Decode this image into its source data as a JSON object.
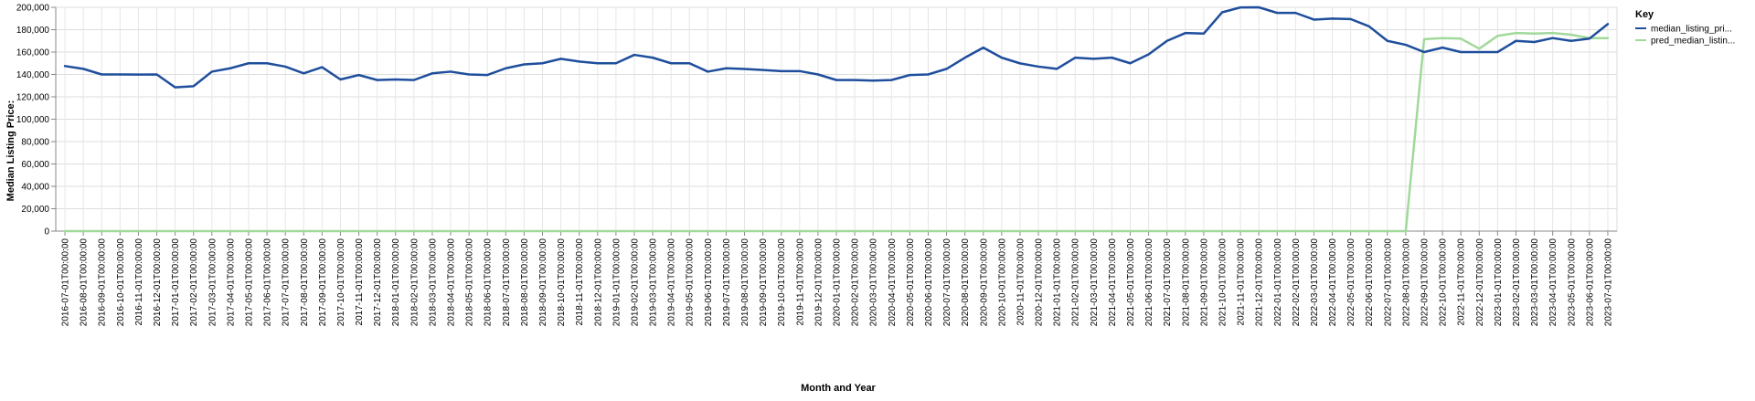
{
  "chart_data": {
    "type": "line",
    "xlabel": "Month and Year",
    "ylabel": "Median Listing Price:",
    "ylim": [
      0,
      200000
    ],
    "y_ticks": [
      0,
      20000,
      40000,
      60000,
      80000,
      100000,
      120000,
      140000,
      160000,
      180000,
      200000
    ],
    "y_tick_labels": [
      "0",
      "20,000",
      "40,000",
      "60,000",
      "80,000",
      "100,000",
      "120,000",
      "140,000",
      "160,000",
      "180,000",
      "200,000"
    ],
    "grid": true,
    "legend": {
      "title": "Key",
      "position": "right"
    },
    "x": [
      "2016-07-01T00:00:00",
      "2016-08-01T00:00:00",
      "2016-09-01T00:00:00",
      "2016-10-01T00:00:00",
      "2016-11-01T00:00:00",
      "2016-12-01T00:00:00",
      "2017-01-01T00:00:00",
      "2017-02-01T00:00:00",
      "2017-03-01T00:00:00",
      "2017-04-01T00:00:00",
      "2017-05-01T00:00:00",
      "2017-06-01T00:00:00",
      "2017-07-01T00:00:00",
      "2017-08-01T00:00:00",
      "2017-09-01T00:00:00",
      "2017-10-01T00:00:00",
      "2017-11-01T00:00:00",
      "2017-12-01T00:00:00",
      "2018-01-01T00:00:00",
      "2018-02-01T00:00:00",
      "2018-03-01T00:00:00",
      "2018-04-01T00:00:00",
      "2018-05-01T00:00:00",
      "2018-06-01T00:00:00",
      "2018-07-01T00:00:00",
      "2018-08-01T00:00:00",
      "2018-09-01T00:00:00",
      "2018-10-01T00:00:00",
      "2018-11-01T00:00:00",
      "2018-12-01T00:00:00",
      "2019-01-01T00:00:00",
      "2019-02-01T00:00:00",
      "2019-03-01T00:00:00",
      "2019-04-01T00:00:00",
      "2019-05-01T00:00:00",
      "2019-06-01T00:00:00",
      "2019-07-01T00:00:00",
      "2019-08-01T00:00:00",
      "2019-09-01T00:00:00",
      "2019-10-01T00:00:00",
      "2019-11-01T00:00:00",
      "2019-12-01T00:00:00",
      "2020-01-01T00:00:00",
      "2020-02-01T00:00:00",
      "2020-03-01T00:00:00",
      "2020-04-01T00:00:00",
      "2020-05-01T00:00:00",
      "2020-06-01T00:00:00",
      "2020-07-01T00:00:00",
      "2020-08-01T00:00:00",
      "2020-09-01T00:00:00",
      "2020-10-01T00:00:00",
      "2020-11-01T00:00:00",
      "2020-12-01T00:00:00",
      "2021-01-01T00:00:00",
      "2021-02-01T00:00:00",
      "2021-03-01T00:00:00",
      "2021-04-01T00:00:00",
      "2021-05-01T00:00:00",
      "2021-06-01T00:00:00",
      "2021-07-01T00:00:00",
      "2021-08-01T00:00:00",
      "2021-09-01T00:00:00",
      "2021-10-01T00:00:00",
      "2021-11-01T00:00:00",
      "2021-12-01T00:00:00",
      "2022-01-01T00:00:00",
      "2022-02-01T00:00:00",
      "2022-03-01T00:00:00",
      "2022-04-01T00:00:00",
      "2022-05-01T00:00:00",
      "2022-06-01T00:00:00",
      "2022-07-01T00:00:00",
      "2022-08-01T00:00:00",
      "2022-09-01T00:00:00",
      "2022-10-01T00:00:00",
      "2022-11-01T00:00:00",
      "2022-12-01T00:00:00",
      "2023-01-01T00:00:00",
      "2023-02-01T00:00:00",
      "2023-03-01T00:00:00",
      "2023-04-01T00:00:00",
      "2023-05-01T00:00:00",
      "2023-06-01T00:00:00",
      "2023-07-01T00:00:00"
    ],
    "series": [
      {
        "name": "median_listing_pri...",
        "color": "#1f4e9c",
        "values": [
          147500,
          145000,
          140000,
          140000,
          139900,
          140000,
          128500,
          129500,
          142500,
          145500,
          150000,
          150000,
          147000,
          141000,
          146500,
          135500,
          139500,
          135000,
          135500,
          135000,
          141000,
          142500,
          140000,
          139500,
          145500,
          149000,
          150000,
          154000,
          151500,
          150000,
          150000,
          157500,
          155000,
          150000,
          150000,
          142500,
          145500,
          144900,
          144000,
          143000,
          143000,
          140000,
          135000,
          135000,
          134500,
          135000,
          139500,
          140000,
          145000,
          155000,
          164000,
          155000,
          149900,
          147000,
          145000,
          155000,
          154000,
          155000,
          150000,
          158000,
          170000,
          177000,
          176500,
          195500,
          199900,
          200000,
          195000,
          195000,
          189000,
          189900,
          189500,
          183000,
          170000,
          166500,
          160000,
          164000,
          160000,
          160000,
          160000,
          170000,
          169000,
          172500,
          170000,
          172000,
          185000
        ]
      },
      {
        "name": "pred_median_listin...",
        "color": "#a1d99b",
        "values": [
          0,
          0,
          0,
          0,
          0,
          0,
          0,
          0,
          0,
          0,
          0,
          0,
          0,
          0,
          0,
          0,
          0,
          0,
          0,
          0,
          0,
          0,
          0,
          0,
          0,
          0,
          0,
          0,
          0,
          0,
          0,
          0,
          0,
          0,
          0,
          0,
          0,
          0,
          0,
          0,
          0,
          0,
          0,
          0,
          0,
          0,
          0,
          0,
          0,
          0,
          0,
          0,
          0,
          0,
          0,
          0,
          0,
          0,
          0,
          0,
          0,
          0,
          0,
          0,
          0,
          0,
          0,
          0,
          0,
          0,
          0,
          0,
          0,
          0,
          171500,
          172500,
          172000,
          163000,
          174500,
          177000,
          176500,
          177000,
          175500,
          172500,
          172500
        ]
      }
    ]
  }
}
